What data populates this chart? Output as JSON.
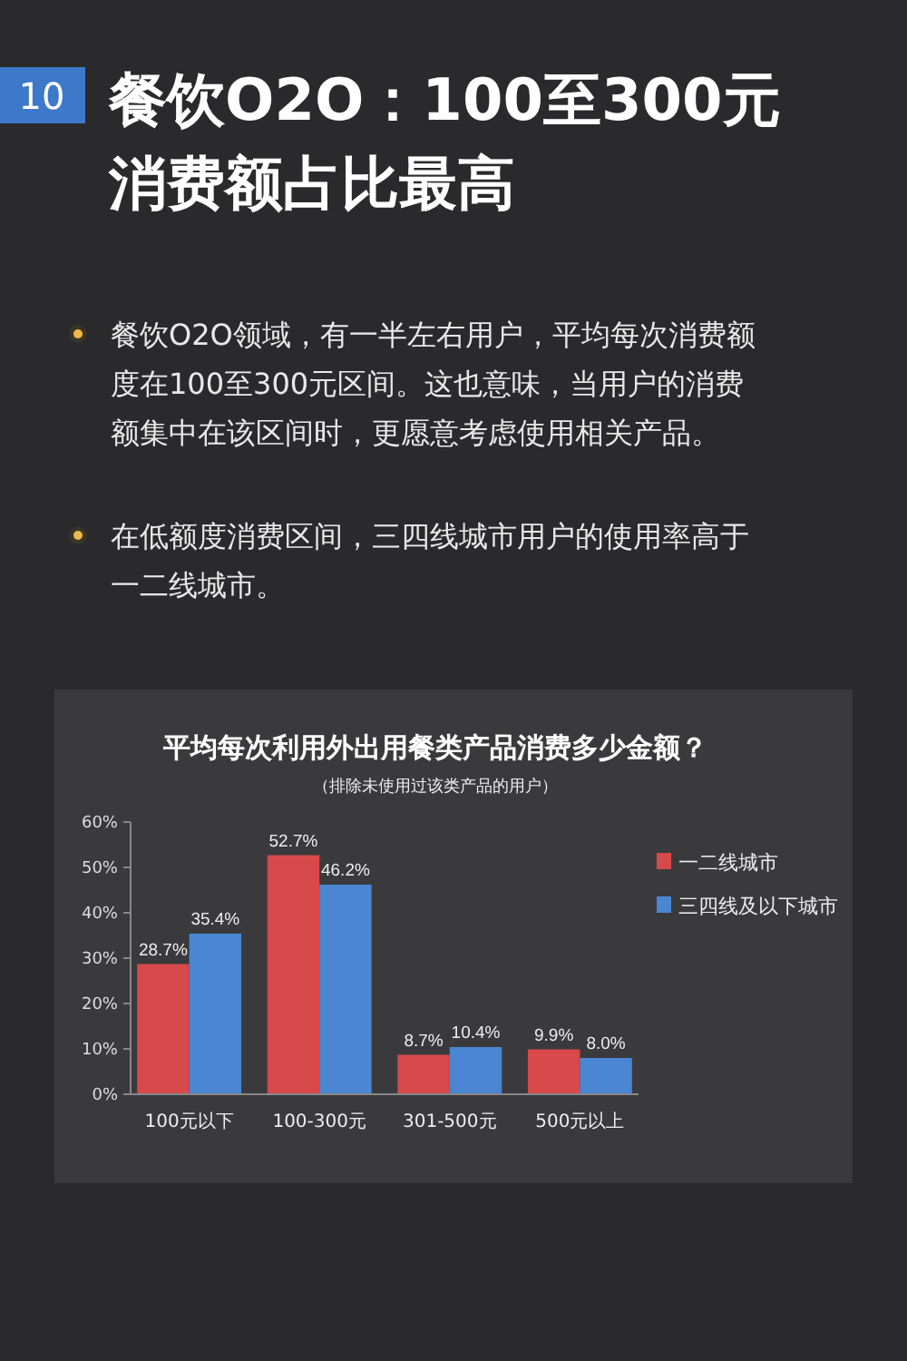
{
  "chart_data": {
    "type": "bar",
    "title": "平均每次利用外出用餐类产品消费多少金额？",
    "subtitle": "（排除未使用过该类产品的用户）",
    "annotations": [
      "10",
      "餐饮O2O：100至300元消费额占比最高",
      "餐饮O2O领域，有一半左右用户，平均每次消费额度在100至300元区间。这也意味，当用户的消费额集中在该区间时，更愿意考虑使用相关产品。",
      "在低额度消费区间，三四线城市用户的使用率高于一二线城市。"
    ],
    "categories": [
      "100元以下",
      "100-300元",
      "301-500元",
      "500元以上"
    ],
    "series": [
      {
        "name": "一二线城市",
        "color": "#d8494b",
        "values": [
          28.7,
          52.7,
          8.7,
          9.9
        ],
        "value_labels": [
          "28.7%",
          "52.7%",
          "8.7%",
          "9.9%"
        ]
      },
      {
        "name": "三四线及以下城市",
        "color": "#4a86d1",
        "values": [
          35.4,
          46.2,
          10.4,
          8.0
        ],
        "value_labels": [
          "35.4%",
          "46.2%",
          "10.4%",
          "8.0%"
        ]
      }
    ],
    "ylim": [
      0,
      60
    ],
    "yticks": [
      {
        "value": 0,
        "label": "0%"
      },
      {
        "value": 10,
        "label": "10%"
      },
      {
        "value": 20,
        "label": "20%"
      },
      {
        "value": 30,
        "label": "30%"
      },
      {
        "value": 40,
        "label": "40%"
      },
      {
        "value": 50,
        "label": "50%"
      },
      {
        "value": 60,
        "label": "60%"
      }
    ],
    "grid": false,
    "legend": "top right"
  }
}
